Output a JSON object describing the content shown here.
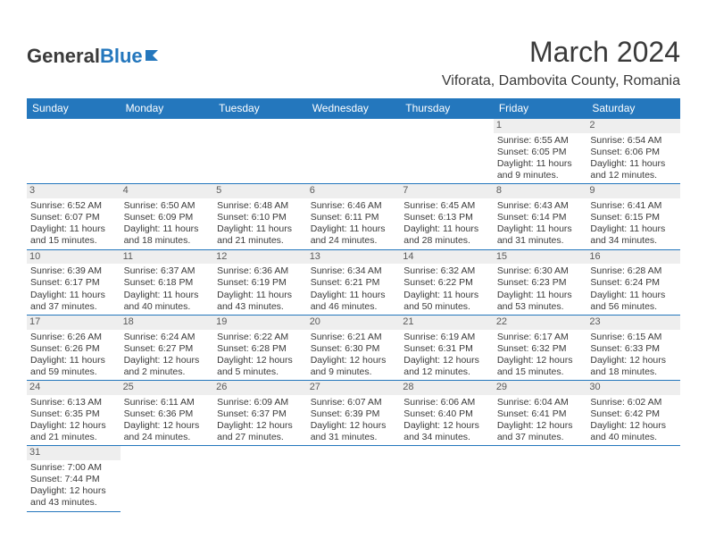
{
  "logo": {
    "part1": "General",
    "part2": "Blue"
  },
  "title": "March 2024",
  "location": "Viforata, Dambovita County, Romania",
  "dayHeaders": [
    "Sunday",
    "Monday",
    "Tuesday",
    "Wednesday",
    "Thursday",
    "Friday",
    "Saturday"
  ],
  "colors": {
    "header_bg": "#2477bd",
    "header_text": "#ffffff",
    "body_text": "#3a3a3a",
    "daynum_bg": "#eeeeee",
    "border": "#2477bd"
  },
  "weeks": [
    [
      null,
      null,
      null,
      null,
      null,
      {
        "n": "1",
        "sr": "Sunrise: 6:55 AM",
        "ss": "Sunset: 6:05 PM",
        "d1": "Daylight: 11 hours",
        "d2": "and 9 minutes."
      },
      {
        "n": "2",
        "sr": "Sunrise: 6:54 AM",
        "ss": "Sunset: 6:06 PM",
        "d1": "Daylight: 11 hours",
        "d2": "and 12 minutes."
      }
    ],
    [
      {
        "n": "3",
        "sr": "Sunrise: 6:52 AM",
        "ss": "Sunset: 6:07 PM",
        "d1": "Daylight: 11 hours",
        "d2": "and 15 minutes."
      },
      {
        "n": "4",
        "sr": "Sunrise: 6:50 AM",
        "ss": "Sunset: 6:09 PM",
        "d1": "Daylight: 11 hours",
        "d2": "and 18 minutes."
      },
      {
        "n": "5",
        "sr": "Sunrise: 6:48 AM",
        "ss": "Sunset: 6:10 PM",
        "d1": "Daylight: 11 hours",
        "d2": "and 21 minutes."
      },
      {
        "n": "6",
        "sr": "Sunrise: 6:46 AM",
        "ss": "Sunset: 6:11 PM",
        "d1": "Daylight: 11 hours",
        "d2": "and 24 minutes."
      },
      {
        "n": "7",
        "sr": "Sunrise: 6:45 AM",
        "ss": "Sunset: 6:13 PM",
        "d1": "Daylight: 11 hours",
        "d2": "and 28 minutes."
      },
      {
        "n": "8",
        "sr": "Sunrise: 6:43 AM",
        "ss": "Sunset: 6:14 PM",
        "d1": "Daylight: 11 hours",
        "d2": "and 31 minutes."
      },
      {
        "n": "9",
        "sr": "Sunrise: 6:41 AM",
        "ss": "Sunset: 6:15 PM",
        "d1": "Daylight: 11 hours",
        "d2": "and 34 minutes."
      }
    ],
    [
      {
        "n": "10",
        "sr": "Sunrise: 6:39 AM",
        "ss": "Sunset: 6:17 PM",
        "d1": "Daylight: 11 hours",
        "d2": "and 37 minutes."
      },
      {
        "n": "11",
        "sr": "Sunrise: 6:37 AM",
        "ss": "Sunset: 6:18 PM",
        "d1": "Daylight: 11 hours",
        "d2": "and 40 minutes."
      },
      {
        "n": "12",
        "sr": "Sunrise: 6:36 AM",
        "ss": "Sunset: 6:19 PM",
        "d1": "Daylight: 11 hours",
        "d2": "and 43 minutes."
      },
      {
        "n": "13",
        "sr": "Sunrise: 6:34 AM",
        "ss": "Sunset: 6:21 PM",
        "d1": "Daylight: 11 hours",
        "d2": "and 46 minutes."
      },
      {
        "n": "14",
        "sr": "Sunrise: 6:32 AM",
        "ss": "Sunset: 6:22 PM",
        "d1": "Daylight: 11 hours",
        "d2": "and 50 minutes."
      },
      {
        "n": "15",
        "sr": "Sunrise: 6:30 AM",
        "ss": "Sunset: 6:23 PM",
        "d1": "Daylight: 11 hours",
        "d2": "and 53 minutes."
      },
      {
        "n": "16",
        "sr": "Sunrise: 6:28 AM",
        "ss": "Sunset: 6:24 PM",
        "d1": "Daylight: 11 hours",
        "d2": "and 56 minutes."
      }
    ],
    [
      {
        "n": "17",
        "sr": "Sunrise: 6:26 AM",
        "ss": "Sunset: 6:26 PM",
        "d1": "Daylight: 11 hours",
        "d2": "and 59 minutes."
      },
      {
        "n": "18",
        "sr": "Sunrise: 6:24 AM",
        "ss": "Sunset: 6:27 PM",
        "d1": "Daylight: 12 hours",
        "d2": "and 2 minutes."
      },
      {
        "n": "19",
        "sr": "Sunrise: 6:22 AM",
        "ss": "Sunset: 6:28 PM",
        "d1": "Daylight: 12 hours",
        "d2": "and 5 minutes."
      },
      {
        "n": "20",
        "sr": "Sunrise: 6:21 AM",
        "ss": "Sunset: 6:30 PM",
        "d1": "Daylight: 12 hours",
        "d2": "and 9 minutes."
      },
      {
        "n": "21",
        "sr": "Sunrise: 6:19 AM",
        "ss": "Sunset: 6:31 PM",
        "d1": "Daylight: 12 hours",
        "d2": "and 12 minutes."
      },
      {
        "n": "22",
        "sr": "Sunrise: 6:17 AM",
        "ss": "Sunset: 6:32 PM",
        "d1": "Daylight: 12 hours",
        "d2": "and 15 minutes."
      },
      {
        "n": "23",
        "sr": "Sunrise: 6:15 AM",
        "ss": "Sunset: 6:33 PM",
        "d1": "Daylight: 12 hours",
        "d2": "and 18 minutes."
      }
    ],
    [
      {
        "n": "24",
        "sr": "Sunrise: 6:13 AM",
        "ss": "Sunset: 6:35 PM",
        "d1": "Daylight: 12 hours",
        "d2": "and 21 minutes."
      },
      {
        "n": "25",
        "sr": "Sunrise: 6:11 AM",
        "ss": "Sunset: 6:36 PM",
        "d1": "Daylight: 12 hours",
        "d2": "and 24 minutes."
      },
      {
        "n": "26",
        "sr": "Sunrise: 6:09 AM",
        "ss": "Sunset: 6:37 PM",
        "d1": "Daylight: 12 hours",
        "d2": "and 27 minutes."
      },
      {
        "n": "27",
        "sr": "Sunrise: 6:07 AM",
        "ss": "Sunset: 6:39 PM",
        "d1": "Daylight: 12 hours",
        "d2": "and 31 minutes."
      },
      {
        "n": "28",
        "sr": "Sunrise: 6:06 AM",
        "ss": "Sunset: 6:40 PM",
        "d1": "Daylight: 12 hours",
        "d2": "and 34 minutes."
      },
      {
        "n": "29",
        "sr": "Sunrise: 6:04 AM",
        "ss": "Sunset: 6:41 PM",
        "d1": "Daylight: 12 hours",
        "d2": "and 37 minutes."
      },
      {
        "n": "30",
        "sr": "Sunrise: 6:02 AM",
        "ss": "Sunset: 6:42 PM",
        "d1": "Daylight: 12 hours",
        "d2": "and 40 minutes."
      }
    ],
    [
      {
        "n": "31",
        "sr": "Sunrise: 7:00 AM",
        "ss": "Sunset: 7:44 PM",
        "d1": "Daylight: 12 hours",
        "d2": "and 43 minutes."
      },
      null,
      null,
      null,
      null,
      null,
      null
    ]
  ]
}
